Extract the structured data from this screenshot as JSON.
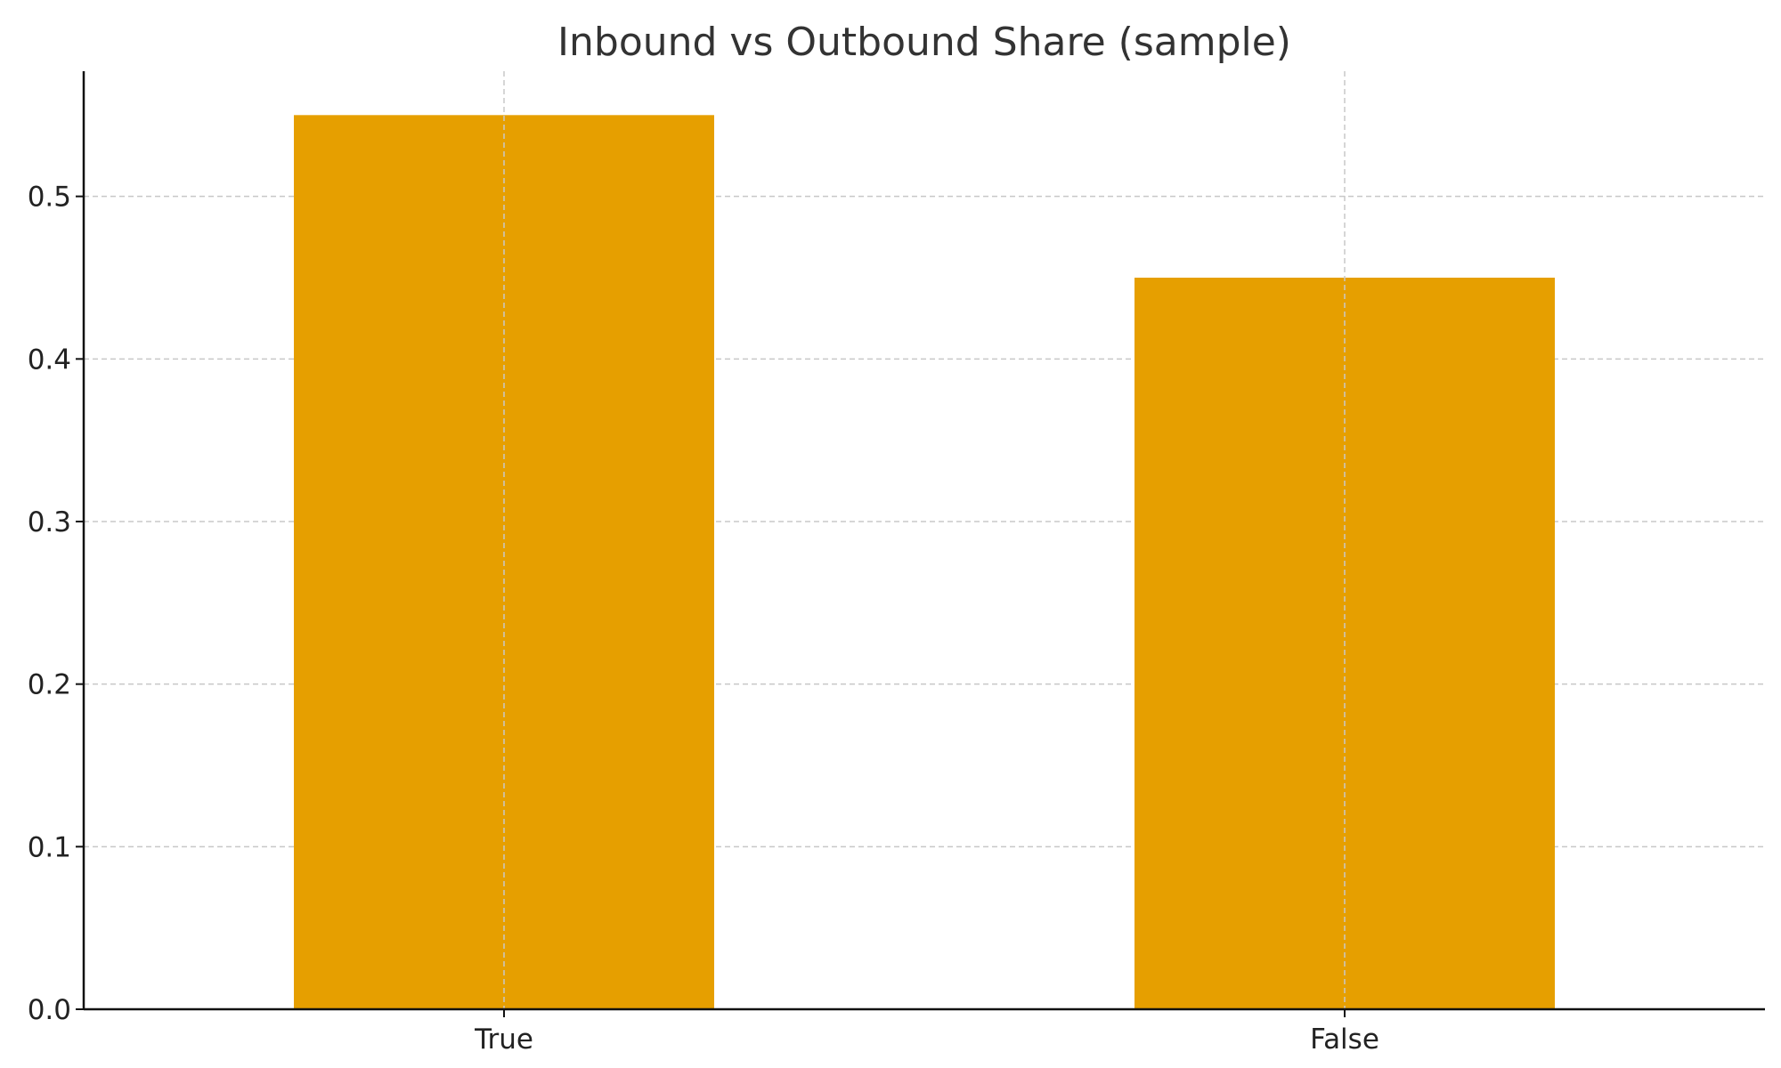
{
  "chart_data": {
    "type": "bar",
    "title": "Inbound vs Outbound Share (sample)",
    "xlabel": "",
    "ylabel": "",
    "categories": [
      "True",
      "False"
    ],
    "values": [
      0.55,
      0.45
    ],
    "ylim": [
      0,
      0.577
    ],
    "yticks": [
      0.0,
      0.1,
      0.2,
      0.3,
      0.4,
      0.5
    ],
    "ytick_labels": [
      "0.0",
      "0.1",
      "0.2",
      "0.3",
      "0.4",
      "0.5"
    ],
    "grid": true,
    "legend": "none",
    "bar_color": "#E69F00"
  }
}
